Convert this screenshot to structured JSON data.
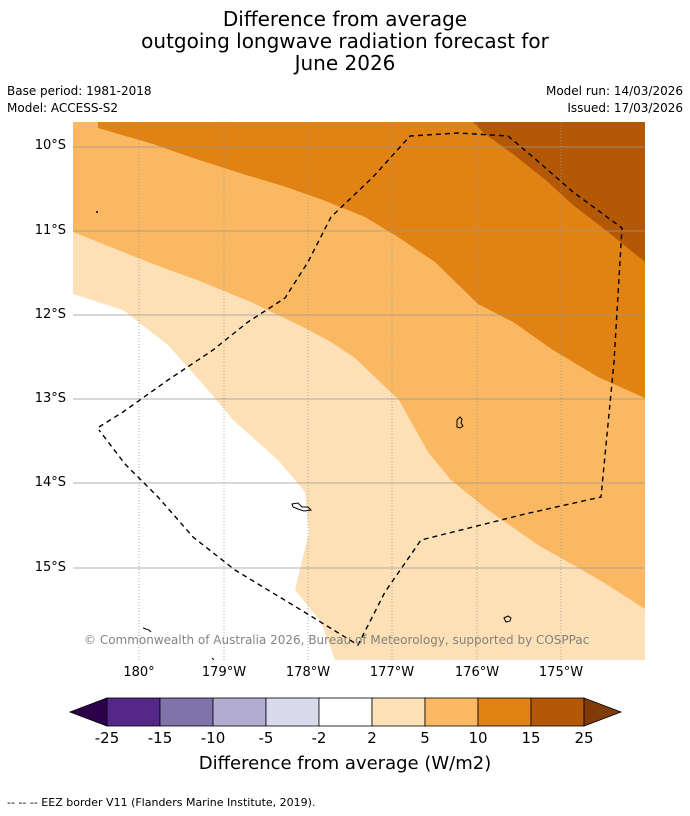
{
  "title": {
    "line1": "Difference from average",
    "line2": "outgoing longwave radiation forecast for",
    "line3": "June 2026"
  },
  "meta": {
    "base_period": "Base period: 1981-2018",
    "model": "Model: ACCESS-S2",
    "model_run": "Model run: 14/03/2026",
    "issued": "Issued: 17/03/2026"
  },
  "map": {
    "lat_labels": [
      "10°S",
      "11°S",
      "12°S",
      "13°S",
      "14°S",
      "15°S"
    ],
    "lon_labels": [
      "180°",
      "179°W",
      "178°W",
      "177°W",
      "176°W",
      "175°W"
    ],
    "copyright": "© Commonwealth of Australia 2026, Bureau of Meteorology, supported by COSPPac",
    "colors": {
      "band_2_5": "#fde0b6",
      "band_5_10": "#fbb862",
      "band_10_15": "#e08214",
      "band_15_25": "#b35806",
      "eez_border": "#000000"
    }
  },
  "colorbar": {
    "ticks": [
      "-25",
      "-15",
      "-10",
      "-5",
      "-2",
      "2",
      "5",
      "10",
      "15",
      "25"
    ],
    "colors": [
      "#2d004b",
      "#542788",
      "#8073ac",
      "#b2abd2",
      "#d8daeb",
      "#ffffff",
      "#fee0b6",
      "#fdb863",
      "#e08214",
      "#b35806",
      "#7f3b08"
    ],
    "label": "Difference from average (W/m2)"
  },
  "footer": "--  --  -- EEZ border V11 (Flanders Marine Institute, 2019)."
}
